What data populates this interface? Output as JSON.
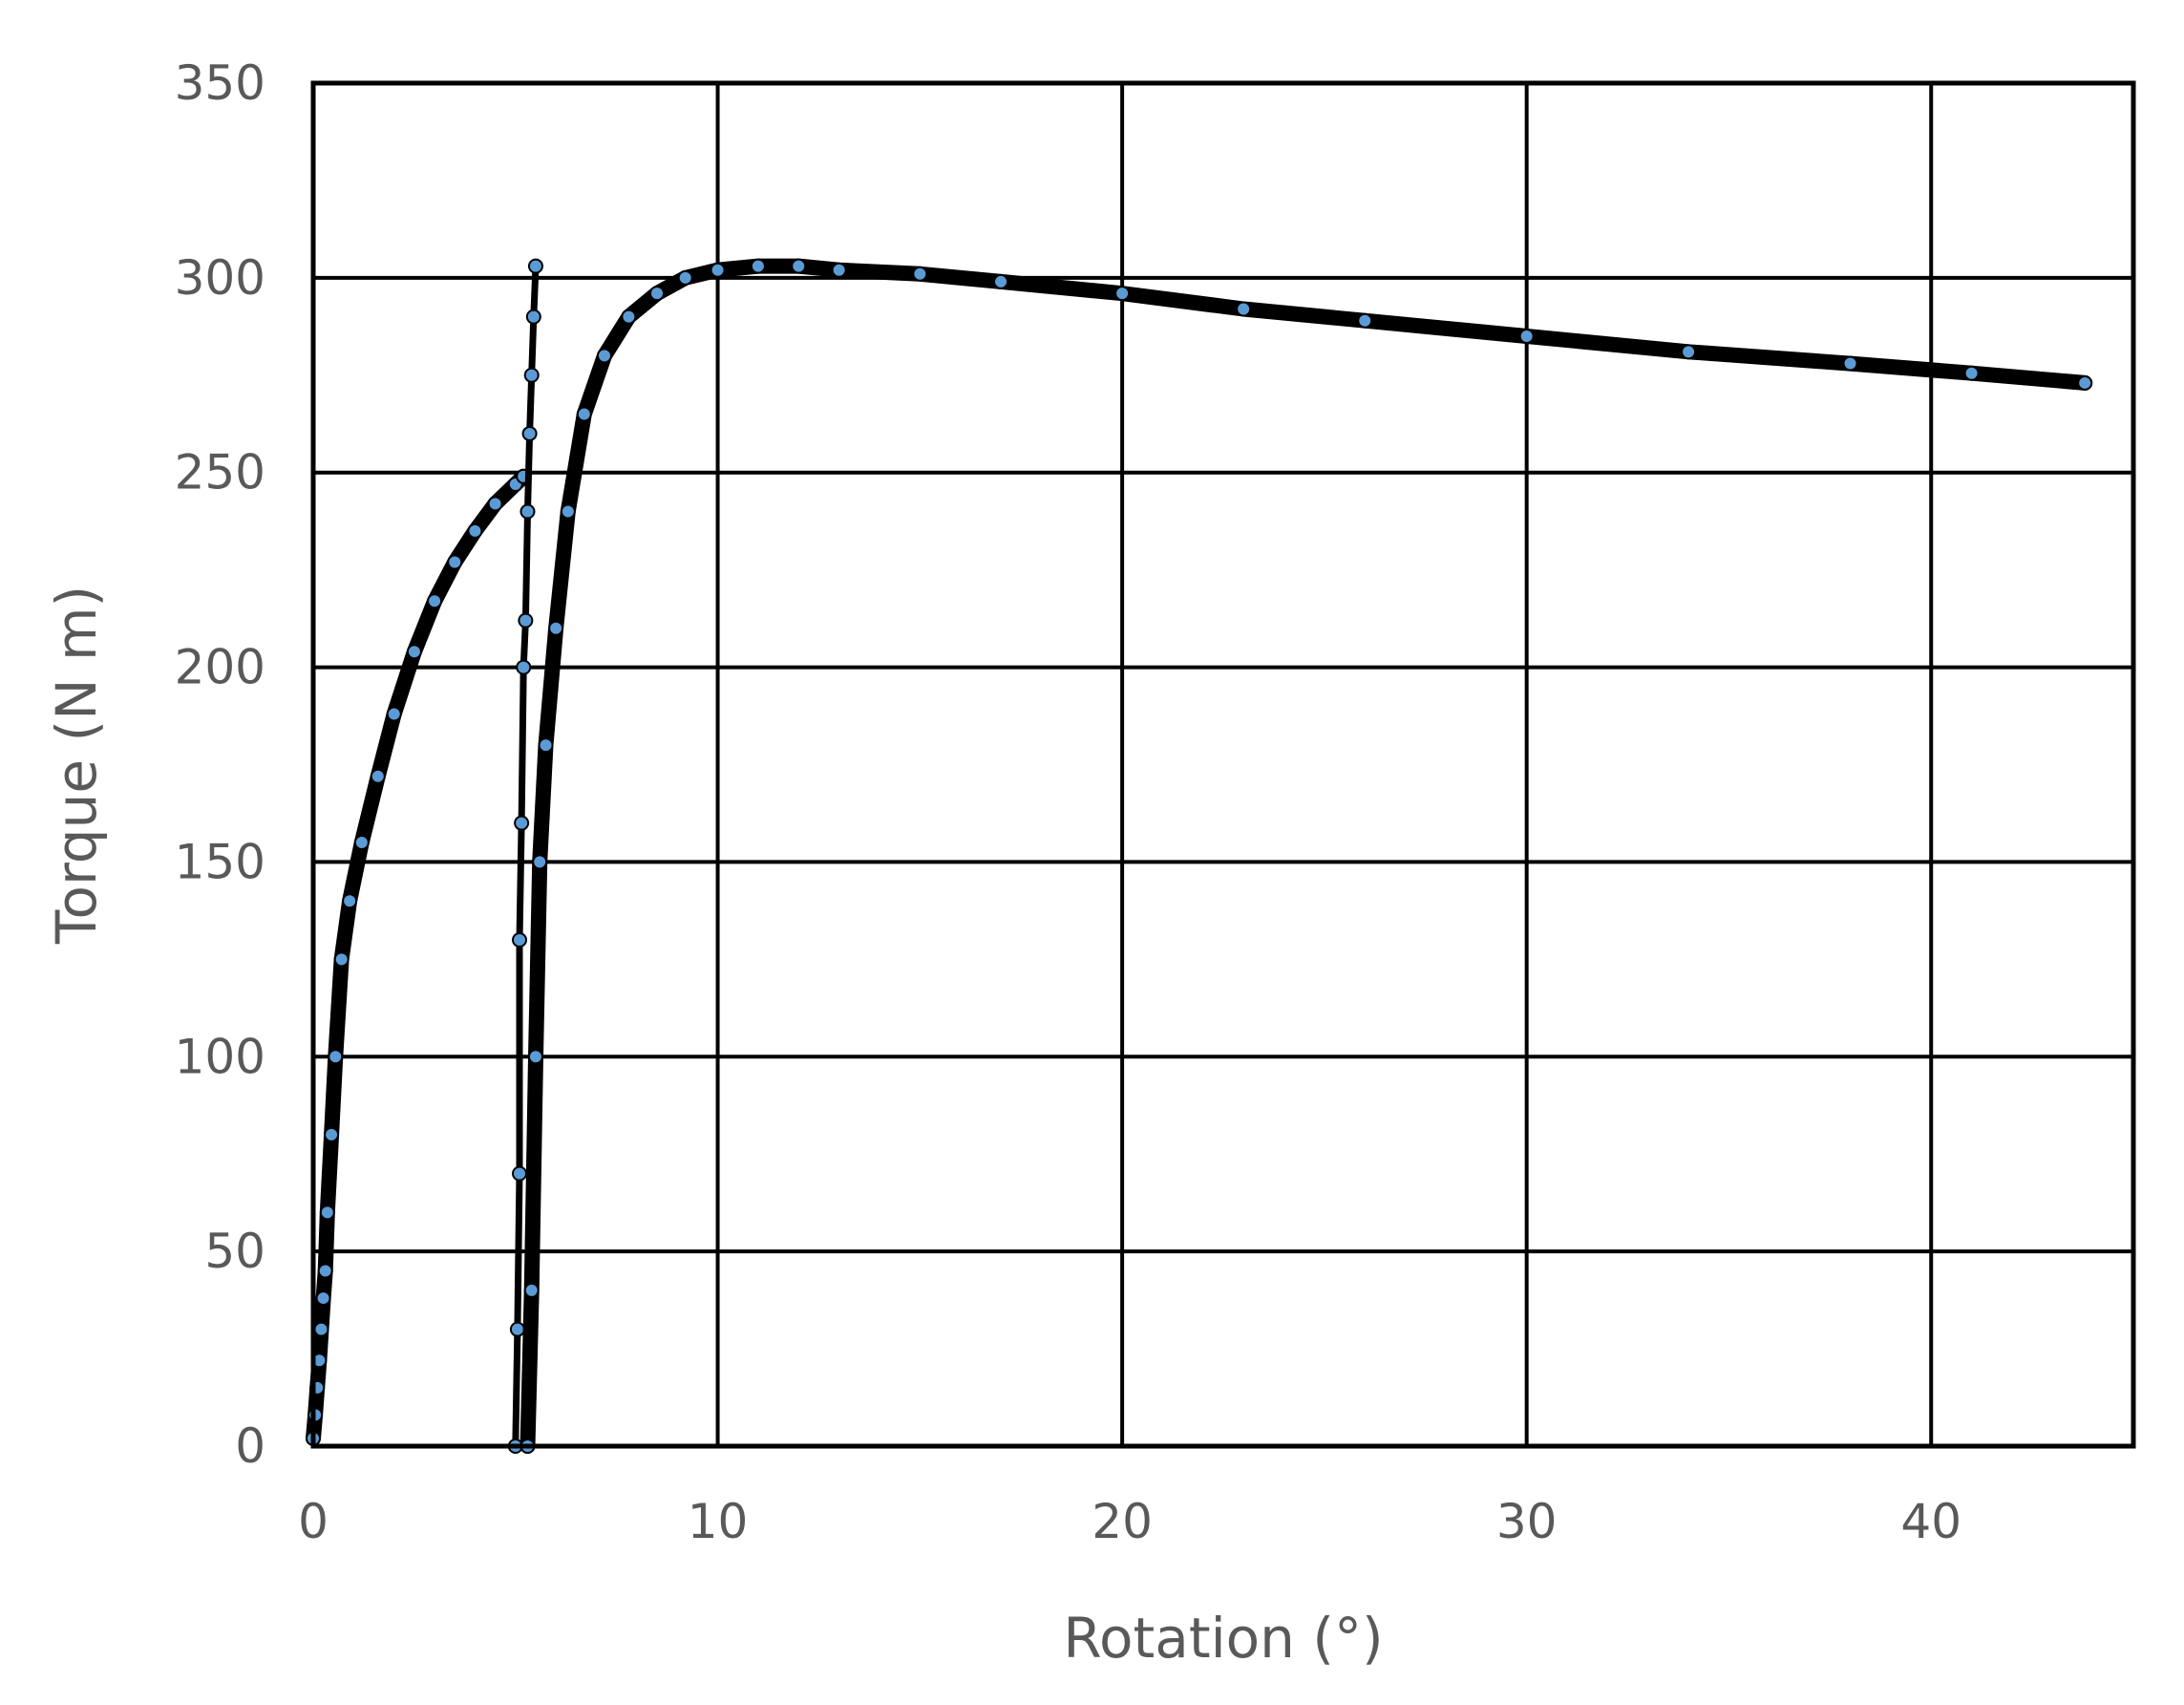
{
  "chart_data": {
    "type": "scatter",
    "xlabel": "Rotation (°)",
    "ylabel": "Torque (N m)",
    "xlim": [
      0,
      45
    ],
    "ylim": [
      0,
      350
    ],
    "xticks": [
      0,
      10,
      20,
      30,
      40
    ],
    "yticks": [
      0,
      50,
      100,
      150,
      200,
      250,
      300,
      350
    ],
    "grid": true,
    "legend": "none",
    "colors": {
      "marker_fill": "#5b9bd5",
      "marker_edge": "#000000",
      "grid": "#000000",
      "text": "#595959"
    },
    "series": [
      {
        "points": [
          [
            0.0,
            2
          ],
          [
            0.05,
            8
          ],
          [
            0.1,
            15
          ],
          [
            0.15,
            22
          ],
          [
            0.2,
            30
          ],
          [
            0.25,
            38
          ],
          [
            0.3,
            45
          ],
          [
            0.35,
            60
          ],
          [
            0.45,
            80
          ],
          [
            0.55,
            100
          ],
          [
            0.7,
            125
          ],
          [
            0.9,
            140
          ],
          [
            1.2,
            155
          ],
          [
            1.6,
            172
          ],
          [
            2.0,
            188
          ],
          [
            2.5,
            204
          ],
          [
            3.0,
            217
          ],
          [
            3.5,
            227
          ],
          [
            4.0,
            235
          ],
          [
            4.5,
            242
          ],
          [
            5.0,
            247
          ],
          [
            5.2,
            249
          ]
        ]
      },
      {
        "points": [
          [
            5.0,
            0
          ],
          [
            5.05,
            30
          ],
          [
            5.1,
            70
          ],
          [
            5.1,
            130
          ],
          [
            5.15,
            160
          ],
          [
            5.2,
            200
          ],
          [
            5.25,
            212
          ],
          [
            5.3,
            240
          ],
          [
            5.35,
            260
          ],
          [
            5.4,
            275
          ],
          [
            5.45,
            290
          ],
          [
            5.5,
            303
          ]
        ]
      },
      {
        "points": [
          [
            5.3,
            0
          ],
          [
            5.4,
            40
          ],
          [
            5.5,
            100
          ],
          [
            5.6,
            150
          ],
          [
            5.75,
            180
          ],
          [
            6.0,
            210
          ],
          [
            6.3,
            240
          ],
          [
            6.7,
            265
          ],
          [
            7.2,
            280
          ],
          [
            7.8,
            290
          ],
          [
            8.5,
            296
          ],
          [
            9.2,
            300
          ],
          [
            10.0,
            302
          ],
          [
            11.0,
            303
          ],
          [
            12.0,
            303
          ],
          [
            13.0,
            302
          ],
          [
            15.0,
            301
          ],
          [
            17.0,
            299
          ],
          [
            20.0,
            296
          ],
          [
            23.0,
            292
          ],
          [
            26.0,
            289
          ],
          [
            30.0,
            285
          ],
          [
            34.0,
            281
          ],
          [
            38.0,
            278
          ],
          [
            41.0,
            275.5
          ],
          [
            43.8,
            273
          ]
        ]
      }
    ]
  }
}
